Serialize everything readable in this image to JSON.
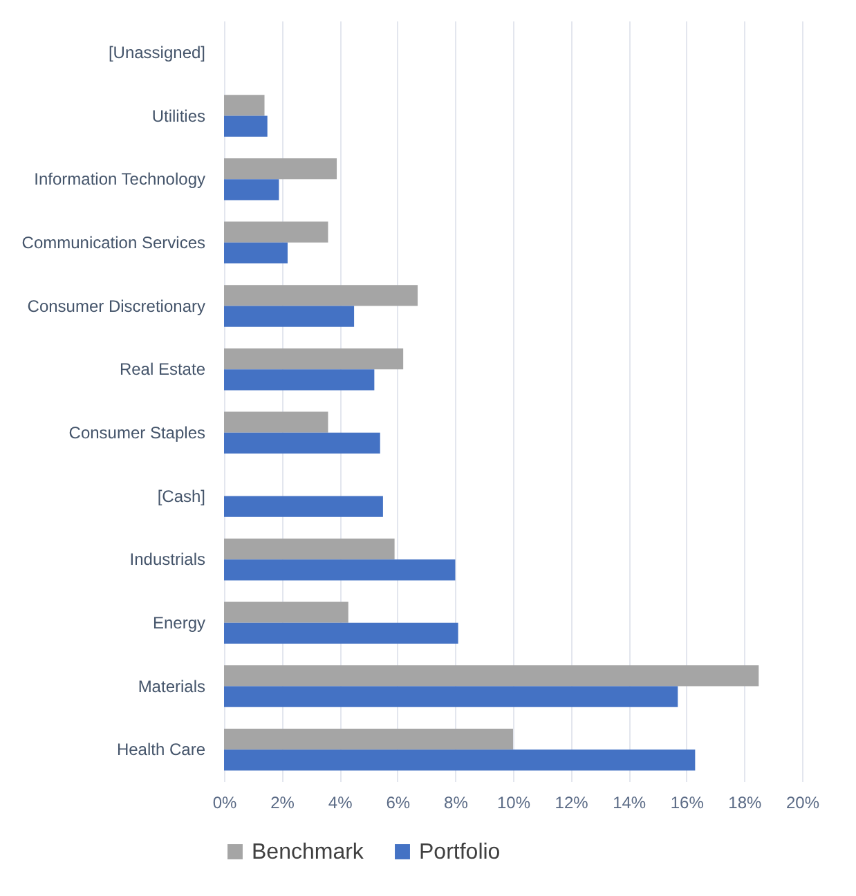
{
  "chart_data": {
    "type": "bar",
    "orientation": "horizontal",
    "categories": [
      "[Unassigned]",
      "Utilities",
      "Information Technology",
      "Communication Services",
      "Consumer Discretionary",
      "Real Estate",
      "Consumer Staples",
      "[Cash]",
      "Industrials",
      "Energy",
      "Materials",
      "Health Care"
    ],
    "series": [
      {
        "name": "Benchmark",
        "color": "#a5a5a5",
        "values": [
          null,
          1.4,
          3.9,
          3.6,
          6.7,
          6.2,
          3.6,
          null,
          5.9,
          4.3,
          18.5,
          10.0
        ]
      },
      {
        "name": "Portfolio",
        "color": "#4472c4",
        "values": [
          null,
          1.5,
          1.9,
          2.2,
          4.5,
          5.2,
          5.4,
          5.5,
          8.0,
          8.1,
          15.7,
          16.3
        ]
      }
    ],
    "xlim": [
      0,
      20
    ],
    "xticks": [
      {
        "value": 0,
        "label": "0%"
      },
      {
        "value": 2,
        "label": "2%"
      },
      {
        "value": 4,
        "label": "4%"
      },
      {
        "value": 6,
        "label": "6%"
      },
      {
        "value": 8,
        "label": "8%"
      },
      {
        "value": 10,
        "label": "10%"
      },
      {
        "value": 12,
        "label": "12%"
      },
      {
        "value": 14,
        "label": "14%"
      },
      {
        "value": 16,
        "label": "16%"
      },
      {
        "value": 18,
        "label": "18%"
      },
      {
        "value": 20,
        "label": "20%"
      }
    ],
    "grid": "x",
    "legend": "bottom"
  }
}
